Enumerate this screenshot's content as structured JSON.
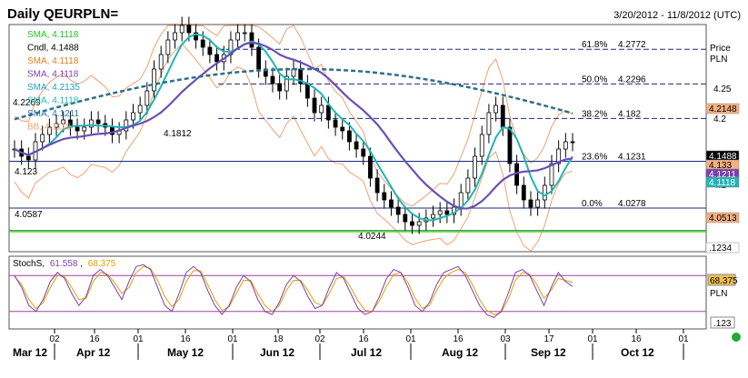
{
  "header": {
    "title": "Daily QEURPLN=",
    "date_range": "3/20/2012 - 11/8/2012 (UTC)"
  },
  "price_axis": {
    "label_line1": "Price",
    "label_line2": "PLN",
    "ticks": [
      "4.25",
      "4.2",
      "4.1"
    ]
  },
  "legend": [
    {
      "text": "SMA, 4.1118",
      "color": "#22c522"
    },
    {
      "text": "Cndl, 4.1488",
      "color": "#000000"
    },
    {
      "text": "SMA, 4.1118",
      "color": "#e08020"
    },
    {
      "text": "SMA, 4.1118",
      "color": "#7b3fb0"
    },
    {
      "text": "SMA, 4.2135",
      "color": "#1f9fc4"
    },
    {
      "text": "SMA, 4.1118",
      "color": "#20b5b5"
    },
    {
      "text": "SMA, 4.1211",
      "color": "#2e6fa8"
    },
    {
      "text": "BB, 4.1118",
      "color": "#f0a070"
    }
  ],
  "fib_levels": [
    {
      "label": "61.8%",
      "value": "4.2772"
    },
    {
      "label": "50.0%",
      "value": "4.2296"
    },
    {
      "label": "38.2%",
      "value": "4.182"
    },
    {
      "label": "23.6%",
      "value": "4.1231"
    },
    {
      "label": "0.0%",
      "value": "4.0278"
    }
  ],
  "left_labels": [
    "4.2269",
    "4.1812",
    "4.123",
    "4.0587",
    "4.0244"
  ],
  "right_value_boxes": [
    {
      "text": "4.2148",
      "bg": "#f4b083",
      "fg": "#000000"
    },
    {
      "text": "4.1488",
      "bg": "#000000",
      "fg": "#ffffff"
    },
    {
      "text": "4.133",
      "bg": "#f4b083",
      "fg": "#000000"
    },
    {
      "text": "4.1211",
      "bg": "#7b3fb0",
      "fg": "#ffffff"
    },
    {
      "text": "4.1118",
      "bg": "#20b5b5",
      "fg": "#ffffff"
    },
    {
      "text": "4.0513",
      "bg": "#f4b083",
      "fg": "#000000"
    },
    {
      "text": ".1234",
      "bg": "#ffffff",
      "fg": "#000000"
    }
  ],
  "stoch": {
    "label": "StochS,",
    "k_value": "61.558",
    "d_value": "68.375",
    "k_color": "#7b3fb0",
    "d_color": "#e0a000",
    "box_value": "68.375",
    "box_unit": "PLN",
    "bottom_box": ".123"
  },
  "x_axis": {
    "day_ticks": [
      "02",
      "16",
      "01",
      "16",
      "01",
      "18",
      "02",
      "16",
      "01",
      "16",
      "03",
      "17",
      "01",
      "16",
      "01"
    ],
    "month_labels": [
      "Mar 12",
      "Apr 12",
      "May 12",
      "Jun 12",
      "Jul 12",
      "Aug 12",
      "Sep 12",
      "Oct 12"
    ]
  },
  "status_dot_color": "#22aa33",
  "chart_data": {
    "type": "candlestick",
    "title": "Daily QEURPLN=",
    "y_range": [
      4.0,
      4.31
    ],
    "horizontal_levels": [
      4.2772,
      4.2296,
      4.182,
      4.1231,
      4.0587,
      4.0278
    ],
    "last_close": 4.1488,
    "closes": [
      4.14,
      4.13,
      4.125,
      4.15,
      4.16,
      4.17,
      4.175,
      4.18,
      4.17,
      4.165,
      4.17,
      4.18,
      4.175,
      4.17,
      4.16,
      4.165,
      4.18,
      4.19,
      4.2,
      4.22,
      4.25,
      4.27,
      4.29,
      4.3,
      4.31,
      4.3,
      4.29,
      4.28,
      4.27,
      4.26,
      4.27,
      4.29,
      4.3,
      4.3,
      4.28,
      4.25,
      4.24,
      4.23,
      4.22,
      4.24,
      4.25,
      4.23,
      4.21,
      4.19,
      4.2,
      4.18,
      4.17,
      4.165,
      4.15,
      4.14,
      4.13,
      4.1,
      4.08,
      4.07,
      4.06,
      4.05,
      4.04,
      4.035,
      4.04,
      4.045,
      4.05,
      4.055,
      4.05,
      4.06,
      4.08,
      4.1,
      4.13,
      4.16,
      4.19,
      4.2,
      4.17,
      4.12,
      4.09,
      4.07,
      4.06,
      4.07,
      4.09,
      4.12,
      4.14,
      4.15,
      4.1488
    ],
    "stoch_k": [
      80,
      60,
      30,
      20,
      40,
      70,
      85,
      75,
      50,
      30,
      45,
      80,
      90,
      80,
      60,
      40,
      70,
      95,
      98,
      90,
      60,
      30,
      20,
      50,
      85,
      95,
      85,
      55,
      30,
      15,
      30,
      60,
      80,
      70,
      40,
      20,
      15,
      35,
      65,
      80,
      70,
      45,
      25,
      30,
      60,
      85,
      75,
      50,
      25,
      15,
      20,
      45,
      75,
      90,
      85,
      60,
      30,
      20,
      35,
      65,
      85,
      90,
      95,
      80,
      55,
      30,
      15,
      10,
      20,
      50,
      85,
      90,
      80,
      55,
      30,
      60,
      85,
      70,
      61.558
    ],
    "stoch_d": [
      78,
      65,
      40,
      25,
      35,
      60,
      80,
      78,
      60,
      40,
      42,
      70,
      85,
      82,
      68,
      50,
      60,
      85,
      95,
      92,
      72,
      45,
      28,
      40,
      70,
      88,
      88,
      65,
      40,
      22,
      28,
      50,
      72,
      72,
      50,
      30,
      20,
      30,
      55,
      72,
      72,
      55,
      35,
      30,
      50,
      75,
      78,
      60,
      38,
      22,
      20,
      38,
      62,
      82,
      85,
      68,
      42,
      25,
      30,
      55,
      75,
      85,
      90,
      85,
      65,
      40,
      22,
      15,
      18,
      40,
      72,
      85,
      82,
      65,
      42,
      55,
      75,
      72,
      68.375
    ]
  }
}
